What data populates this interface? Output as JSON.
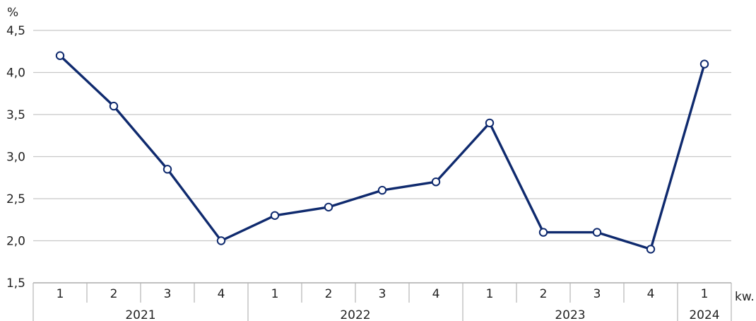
{
  "chart_data": {
    "type": "line",
    "ylabel": "%",
    "ylim": [
      1.5,
      4.5
    ],
    "yticks": [
      "1,5",
      "2,0",
      "2,5",
      "3,0",
      "3,5",
      "4,0",
      "4,5"
    ],
    "x_unit": "kw.",
    "years": [
      {
        "label": "2021",
        "quarters": [
          "1",
          "2",
          "3",
          "4"
        ]
      },
      {
        "label": "2022",
        "quarters": [
          "1",
          "2",
          "3",
          "4"
        ]
      },
      {
        "label": "2023",
        "quarters": [
          "1",
          "2",
          "3",
          "4"
        ]
      },
      {
        "label": "2024",
        "quarters": [
          "1"
        ]
      }
    ],
    "series": [
      {
        "values": [
          4.2,
          3.6,
          2.85,
          2.0,
          2.3,
          2.4,
          2.6,
          2.7,
          3.4,
          2.1,
          2.1,
          1.9,
          4.1
        ],
        "color": "#0f2a6e"
      }
    ],
    "grid": true
  }
}
